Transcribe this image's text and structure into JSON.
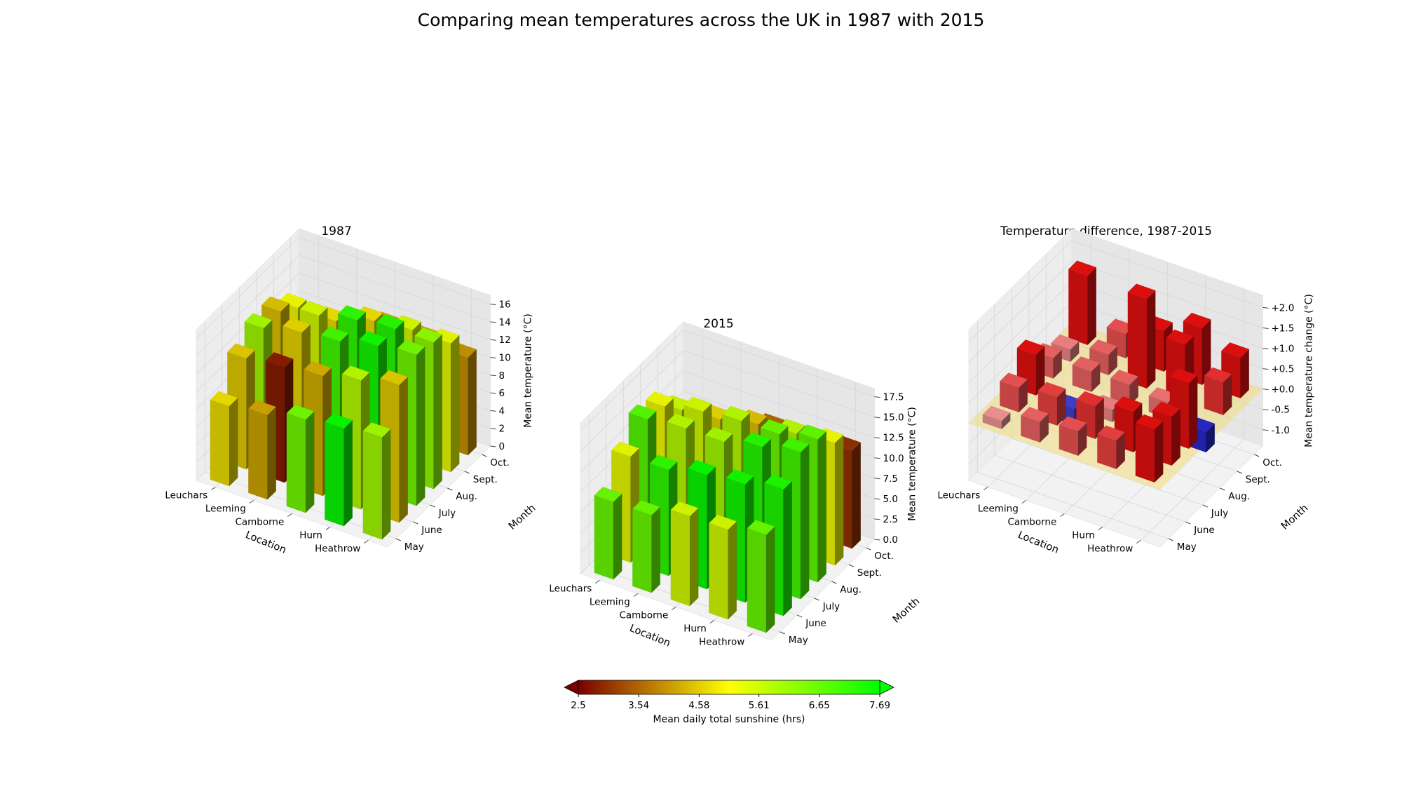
{
  "figure": {
    "title": "Comparing mean temperatures across the UK in 1987 with 2015"
  },
  "colors": {
    "sunshine_low": "#7a0000",
    "sunshine_mid": "#ffff00",
    "sunshine_high": "#00ff00",
    "increase": "#e81010",
    "decrease": "#1010c8",
    "zero_plane": "#f0dc78",
    "pane": "#f2f2f2",
    "grid": "#d6d6d6"
  },
  "colorbar": {
    "label": "Mean daily total sunshine (hrs)",
    "ticks": [
      "2.5",
      "3.54",
      "4.58",
      "5.61",
      "6.65",
      "7.69"
    ],
    "min": 2.5,
    "max": 7.69,
    "extend": "both"
  },
  "chart_data": [
    {
      "type": "bar3d",
      "title": "1987",
      "xlabel": "Location",
      "ylabel": "Month",
      "zlabel": "Mean temperature (°C)",
      "locations": [
        "Leuchars",
        "Leeming",
        "Camborne",
        "Hurn",
        "Heathrow"
      ],
      "months": [
        "May",
        "June",
        "July",
        "Aug.",
        "Sept.",
        "Oct."
      ],
      "zticks": [
        "0",
        "2",
        "4",
        "6",
        "8",
        "10",
        "12",
        "14",
        "16"
      ],
      "zlim": [
        0,
        17
      ],
      "temperatures": [
        [
          9.0,
          12.5,
          14.0,
          14.0,
          12.5,
          9.0
        ],
        [
          9.5,
          13.0,
          15.0,
          15.0,
          12.5,
          9.0
        ],
        [
          10.5,
          13.5,
          15.5,
          16.0,
          14.0,
          11.5
        ],
        [
          11.0,
          14.5,
          16.5,
          16.5,
          14.5,
          11.5
        ],
        [
          11.5,
          15.5,
          17.0,
          16.5,
          14.5,
          11.0
        ]
      ],
      "sunshine": [
        [
          4.8,
          4.6,
          6.0,
          4.5,
          5.2,
          3.2
        ],
        [
          4.2,
          2.8,
          4.7,
          5.5,
          4.8,
          3.8
        ],
        [
          6.5,
          4.3,
          7.0,
          7.2,
          4.8,
          4.3
        ],
        [
          7.6,
          5.8,
          7.5,
          7.3,
          5.5,
          4.3
        ],
        [
          6.0,
          4.6,
          6.5,
          6.2,
          5.3,
          4.0
        ]
      ]
    },
    {
      "type": "bar3d",
      "title": "2015",
      "xlabel": "Location",
      "ylabel": "Month",
      "zlabel": "Mean temperature (°C)",
      "locations": [
        "Leuchars",
        "Leeming",
        "Camborne",
        "Hurn",
        "Heathrow"
      ],
      "months": [
        "May",
        "June",
        "July",
        "Aug.",
        "Sept.",
        "Oct."
      ],
      "zticks": [
        "0.0",
        "2.5",
        "5.0",
        "7.5",
        "10.0",
        "12.5",
        "15.0",
        "17.5"
      ],
      "zlim": [
        0,
        18.5
      ],
      "temperatures": [
        [
          9.5,
          13.0,
          15.5,
          15.0,
          12.5,
          9.0
        ],
        [
          9.5,
          13.0,
          16.0,
          16.0,
          13.0,
          9.5
        ],
        [
          11.0,
          14.0,
          16.0,
          16.5,
          14.0,
          11.5
        ],
        [
          11.0,
          14.5,
          17.0,
          16.5,
          14.5,
          11.5
        ],
        [
          12.0,
          15.5,
          18.0,
          17.5,
          15.0,
          12.0
        ]
      ],
      "sunshine": [
        [
          6.6,
          5.3,
          6.8,
          5.2,
          5.6,
          4.3
        ],
        [
          6.6,
          7.2,
          5.8,
          5.5,
          4.7,
          3.8
        ],
        [
          5.5,
          7.6,
          6.0,
          5.8,
          4.5,
          3.6
        ],
        [
          5.5,
          7.5,
          7.3,
          6.6,
          5.8,
          4.2
        ],
        [
          6.6,
          7.4,
          7.0,
          6.7,
          5.2,
          3.0
        ]
      ]
    },
    {
      "type": "bar3d",
      "title": "Temperature difference, 1987-2015",
      "xlabel": "Location",
      "ylabel": "Month",
      "zlabel": "Mean temperature change (°C)",
      "locations": [
        "Leuchars",
        "Leeming",
        "Camborne",
        "Hurn",
        "Heathrow"
      ],
      "months": [
        "May",
        "June",
        "July",
        "Aug.",
        "Sept.",
        "Oct."
      ],
      "zticks": [
        "-1.0",
        "-0.5",
        "+0.0",
        "+0.5",
        "+1.0",
        "+1.5",
        "+2.0"
      ],
      "zlim": [
        -1.4,
        2.3
      ],
      "differences": [
        [
          0.2,
          0.6,
          1.0,
          0.5,
          0.3,
          1.7
        ],
        [
          0.5,
          0.7,
          -0.4,
          0.5,
          0.5,
          0.6
        ],
        [
          0.6,
          0.8,
          0.3,
          0.5,
          2.2,
          1.0
        ],
        [
          0.7,
          1.0,
          -0.2,
          0.4,
          1.4,
          1.4
        ],
        [
          1.3,
          1.2,
          1.6,
          -0.5,
          0.8,
          1.0
        ]
      ]
    }
  ]
}
